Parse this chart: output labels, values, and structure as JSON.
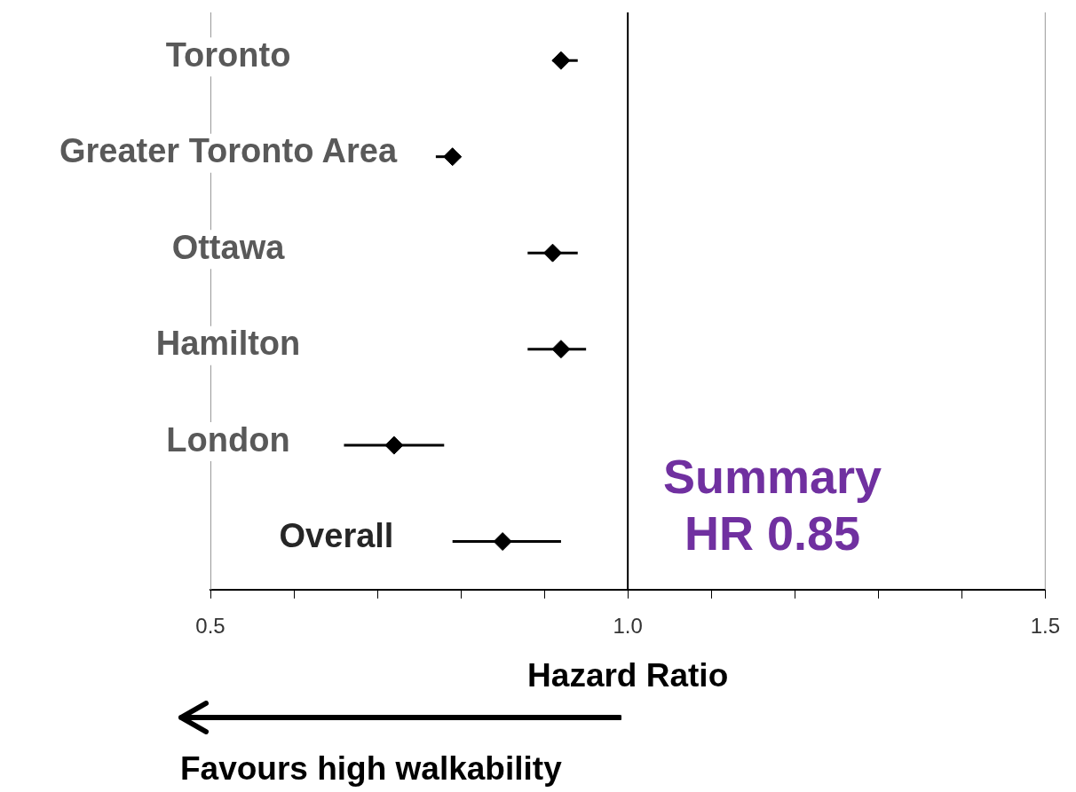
{
  "chart_data": {
    "type": "scatter",
    "orientation": "horizontal",
    "marker": "diamond",
    "color": "#000000",
    "categories": [
      "Toronto",
      "Greater Toronto Area",
      "Ottawa",
      "Hamilton",
      "London",
      "Overall"
    ],
    "values": [
      0.92,
      0.79,
      0.91,
      0.92,
      0.72,
      0.85
    ],
    "errors": [
      [
        0.91,
        0.94
      ],
      [
        0.77,
        0.8
      ],
      [
        0.88,
        0.94
      ],
      [
        0.88,
        0.95
      ],
      [
        0.66,
        0.78
      ],
      [
        0.79,
        0.92
      ]
    ],
    "xlim": [
      0.5,
      1.5
    ],
    "xticks": [
      0.5,
      {
        "value": 0.6,
        "label": null
      },
      {
        "value": 0.7,
        "label": null
      },
      {
        "value": 0.8,
        "label": null
      },
      {
        "value": 0.9,
        "label": null
      },
      {
        "value": 1.0,
        "label": "1.0"
      },
      {
        "value": 1.1,
        "label": null
      },
      {
        "value": 1.2,
        "label": null
      },
      {
        "value": 1.3,
        "label": null
      },
      {
        "value": 1.4,
        "label": null
      },
      1.5
    ],
    "xlabel": "Hazard Ratio",
    "ref_lines": [
      {
        "axis": "x",
        "value": 1.0,
        "color": "#000000"
      }
    ],
    "annotations": [
      "Summary HR 0.85",
      "Favours high walkability"
    ]
  }
}
